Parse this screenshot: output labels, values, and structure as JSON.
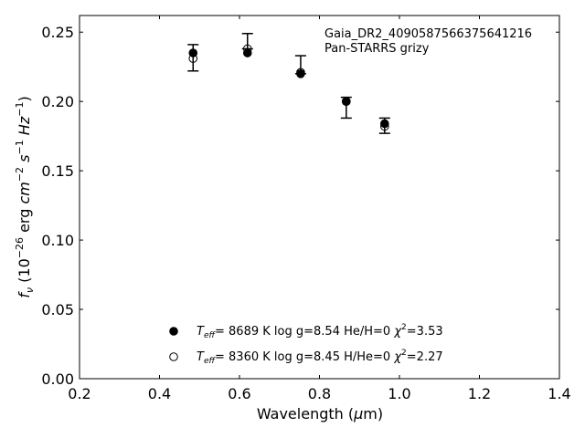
{
  "chart_data": {
    "type": "scatter",
    "xlabel": "Wavelength (μm)",
    "ylabel": "f_ν (10^-26 erg cm^-2 s^-1 Hz^-1)",
    "xlim": [
      0.2,
      1.4
    ],
    "ylim": [
      0.0,
      0.262
    ],
    "x_ticks": [
      0.2,
      0.4,
      0.6,
      0.8,
      1.0,
      1.2,
      1.4
    ],
    "x_tick_labels": [
      "0.2",
      "0.4",
      "0.6",
      "0.8",
      "1.0",
      "1.2",
      "1.4"
    ],
    "y_ticks": [
      0.0,
      0.05,
      0.1,
      0.15,
      0.2,
      0.25
    ],
    "y_tick_labels": [
      "0.00",
      "0.05",
      "0.10",
      "0.15",
      "0.20",
      "0.25"
    ],
    "grid": false,
    "annotation": [
      "Gaia_DR2_4090587566375641216",
      "Pan-STARRS grizy"
    ],
    "observed": {
      "x": [
        0.484,
        0.62,
        0.753,
        0.867,
        0.963
      ],
      "y": [
        0.2315,
        0.2435,
        0.2265,
        0.1955,
        0.1825
      ],
      "yerr": [
        0.0095,
        0.0055,
        0.0065,
        0.0075,
        0.0055
      ]
    },
    "series": [
      {
        "marker": "filled-circle",
        "x": [
          0.484,
          0.62,
          0.753,
          0.867,
          0.963
        ],
        "y": [
          0.235,
          0.235,
          0.22,
          0.2,
          0.184
        ]
      },
      {
        "marker": "open-circle",
        "x": [
          0.484,
          0.62,
          0.753,
          0.867,
          0.963
        ],
        "y": [
          0.231,
          0.238,
          0.221,
          0.2,
          0.182
        ]
      }
    ],
    "legend": {
      "placement": "lower-center",
      "entries": [
        {
          "marker": "filled-circle",
          "teff_value": "8689 K",
          "logg": "log g=8.54",
          "comp": "He/H=0",
          "chi2": "=3.53"
        },
        {
          "marker": "open-circle",
          "teff_value": "8360 K",
          "logg": "log g=8.45",
          "comp": "H/He=0",
          "chi2": "=2.27"
        }
      ]
    }
  }
}
